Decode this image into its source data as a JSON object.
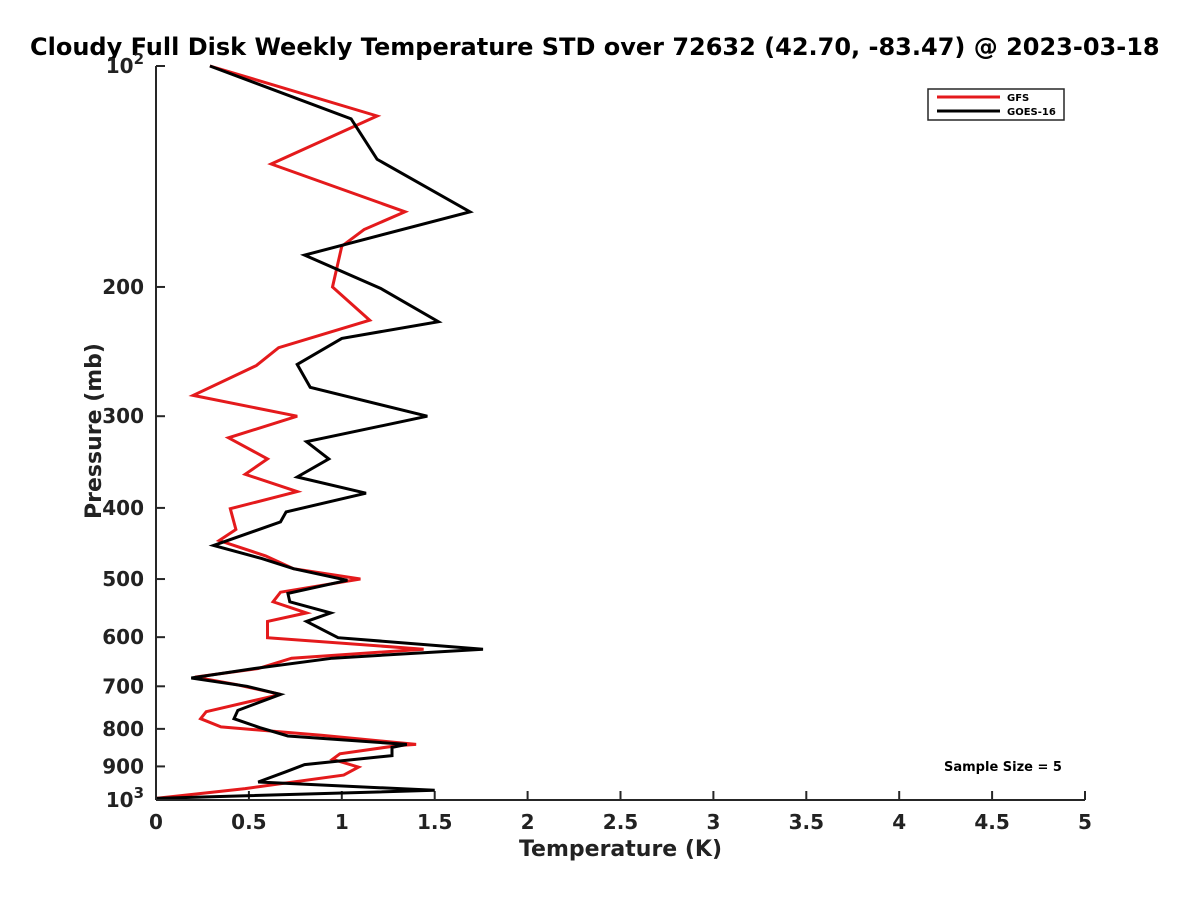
{
  "chart_data": {
    "type": "line",
    "title": "Cloudy Full Disk Weekly Temperature STD over 72632 (42.70, -83.47) @ 2023-03-18",
    "xlabel": "Temperature (K)",
    "ylabel": "Pressure (mb)",
    "xlim": [
      0,
      5
    ],
    "ylim": [
      100,
      1000
    ],
    "y_scale": "log",
    "y_reversed": true,
    "x_ticks": [
      {
        "value": 0,
        "label": "0"
      },
      {
        "value": 0.5,
        "label": "0.5"
      },
      {
        "value": 1,
        "label": "1"
      },
      {
        "value": 1.5,
        "label": "1.5"
      },
      {
        "value": 2,
        "label": "2"
      },
      {
        "value": 2.5,
        "label": "2.5"
      },
      {
        "value": 3,
        "label": "3"
      },
      {
        "value": 3.5,
        "label": "3.5"
      },
      {
        "value": 4,
        "label": "4"
      },
      {
        "value": 4.5,
        "label": "4.5"
      },
      {
        "value": 5,
        "label": "5"
      }
    ],
    "y_ticks": [
      {
        "value": 100,
        "base": "10",
        "exp": "2"
      },
      {
        "value": 200,
        "label": "200"
      },
      {
        "value": 300,
        "label": "300"
      },
      {
        "value": 400,
        "label": "400"
      },
      {
        "value": 500,
        "label": "500"
      },
      {
        "value": 600,
        "label": "600"
      },
      {
        "value": 700,
        "label": "700"
      },
      {
        "value": 800,
        "label": "800"
      },
      {
        "value": 900,
        "label": "900"
      },
      {
        "value": 1000,
        "base": "10",
        "exp": "3"
      }
    ],
    "grid": false,
    "legend_position": "top-right",
    "annotation": "Sample Size = 5",
    "series": [
      {
        "name": "GFS",
        "color": "#e41a1c",
        "points": [
          [
            0.29,
            100
          ],
          [
            1.19,
            117
          ],
          [
            0.62,
            136
          ],
          [
            1.34,
            158
          ],
          [
            1.12,
            167
          ],
          [
            1.0,
            176
          ],
          [
            0.95,
            200
          ],
          [
            1.15,
            222
          ],
          [
            0.66,
            242
          ],
          [
            0.54,
            256
          ],
          [
            0.2,
            281
          ],
          [
            0.76,
            300
          ],
          [
            0.39,
            321
          ],
          [
            0.6,
            343
          ],
          [
            0.48,
            360
          ],
          [
            0.76,
            380
          ],
          [
            0.4,
            401
          ],
          [
            0.43,
            428
          ],
          [
            0.34,
            443
          ],
          [
            0.59,
            465
          ],
          [
            0.74,
            484
          ],
          [
            1.1,
            500
          ],
          [
            0.67,
            521
          ],
          [
            0.63,
            537
          ],
          [
            0.81,
            556
          ],
          [
            0.6,
            571
          ],
          [
            0.6,
            601
          ],
          [
            1.44,
            623
          ],
          [
            0.73,
            641
          ],
          [
            0.55,
            662
          ],
          [
            0.21,
            680
          ],
          [
            0.44,
            697
          ],
          [
            0.67,
            718
          ],
          [
            0.27,
            758
          ],
          [
            0.24,
            775
          ],
          [
            0.35,
            795
          ],
          [
            0.89,
            816
          ],
          [
            1.4,
            840
          ],
          [
            1.3,
            843
          ],
          [
            0.99,
            865
          ],
          [
            0.95,
            880
          ],
          [
            1.09,
            902
          ],
          [
            1.01,
            925
          ],
          [
            0.48,
            965
          ],
          [
            0,
            995
          ]
        ]
      },
      {
        "name": "GOES-16",
        "color": "#000000",
        "points": [
          [
            0.29,
            100
          ],
          [
            1.05,
            118
          ],
          [
            1.19,
            134
          ],
          [
            1.69,
            158
          ],
          [
            0.8,
            181
          ],
          [
            1.21,
            201
          ],
          [
            1.52,
            223
          ],
          [
            1.0,
            235
          ],
          [
            0.76,
            255
          ],
          [
            0.83,
            274
          ],
          [
            1.46,
            300
          ],
          [
            0.81,
            325
          ],
          [
            0.93,
            343
          ],
          [
            0.76,
            363
          ],
          [
            1.13,
            382
          ],
          [
            0.7,
            405
          ],
          [
            0.67,
            418
          ],
          [
            0.31,
            450
          ],
          [
            0.57,
            469
          ],
          [
            0.74,
            484
          ],
          [
            1.03,
            502
          ],
          [
            0.71,
            523
          ],
          [
            0.72,
            537
          ],
          [
            0.94,
            556
          ],
          [
            0.81,
            571
          ],
          [
            0.98,
            601
          ],
          [
            1.76,
            623
          ],
          [
            0.95,
            641
          ],
          [
            0.53,
            662
          ],
          [
            0.19,
            682
          ],
          [
            0.49,
            700
          ],
          [
            0.67,
            718
          ],
          [
            0.44,
            755
          ],
          [
            0.42,
            775
          ],
          [
            0.56,
            797
          ],
          [
            0.71,
            818
          ],
          [
            1.35,
            840
          ],
          [
            1.27,
            848
          ],
          [
            1.27,
            870
          ],
          [
            0.8,
            895
          ],
          [
            0.7,
            915
          ],
          [
            0.55,
            945
          ],
          [
            1.5,
            970
          ],
          [
            0,
            995
          ]
        ]
      }
    ]
  }
}
